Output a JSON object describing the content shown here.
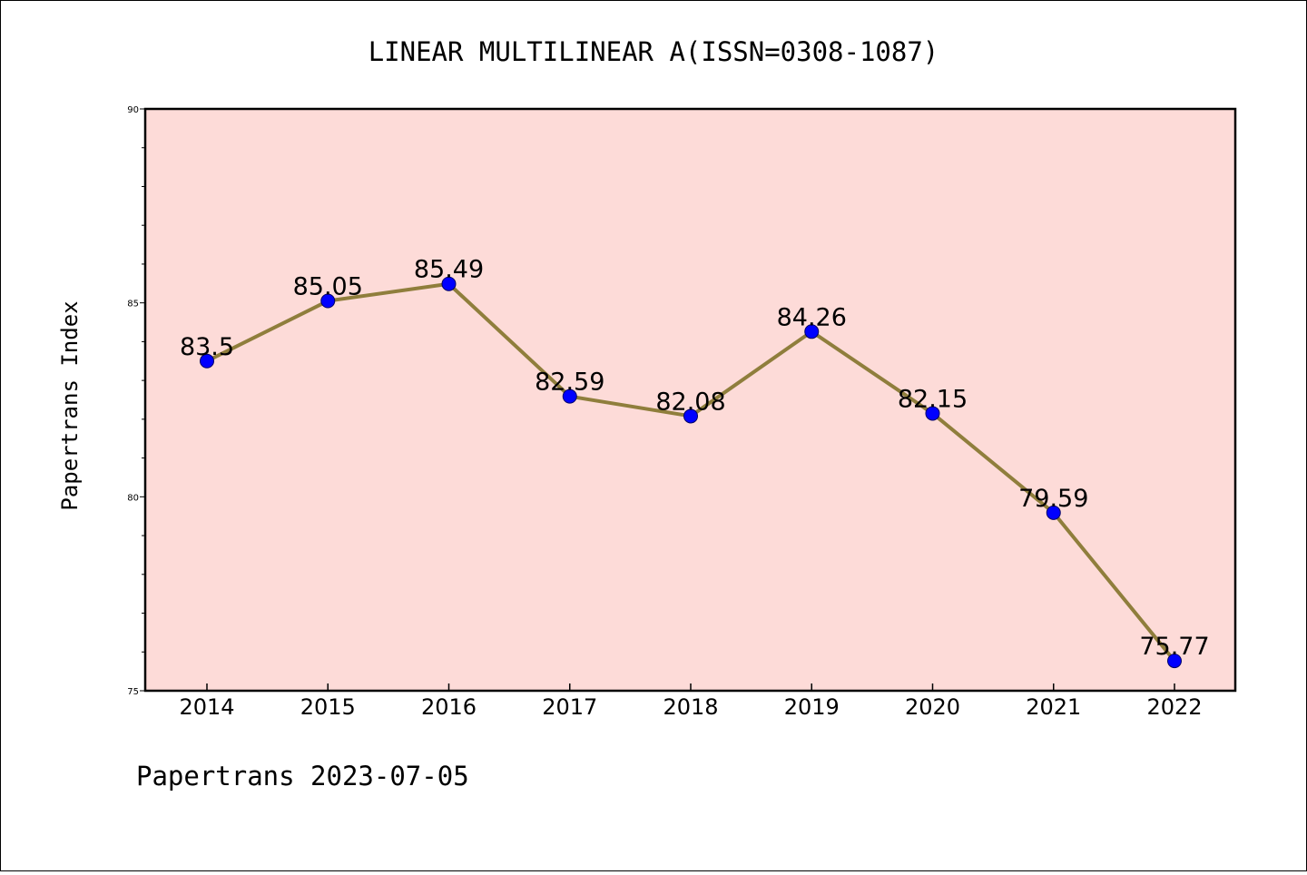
{
  "chart_data": {
    "type": "line",
    "title": "LINEAR MULTILINEAR A(ISSN=0308-1087)",
    "xlabel": "",
    "ylabel": "Papertrans Index",
    "categories": [
      "2014",
      "2015",
      "2016",
      "2017",
      "2018",
      "2019",
      "2020",
      "2021",
      "2022"
    ],
    "series": [
      {
        "values": [
          83.5,
          85.05,
          85.49,
          82.59,
          82.08,
          84.26,
          82.15,
          79.59,
          75.77
        ],
        "data_labels": [
          "83.5",
          "85.05",
          "85.49",
          "82.59",
          "82.08",
          "84.26",
          "82.15",
          "79.59",
          "75.77"
        ]
      }
    ],
    "ylim": [
      75,
      90
    ],
    "yticks": [
      "75",
      "80",
      "85",
      "90"
    ],
    "grid": false,
    "legend": "none",
    "colors": {
      "plot_background": "#fddbd8",
      "line": "#8f7e3c",
      "marker": "#0000ff",
      "axis": "#000000"
    }
  },
  "footer_text": "Papertrans 2023-07-05"
}
